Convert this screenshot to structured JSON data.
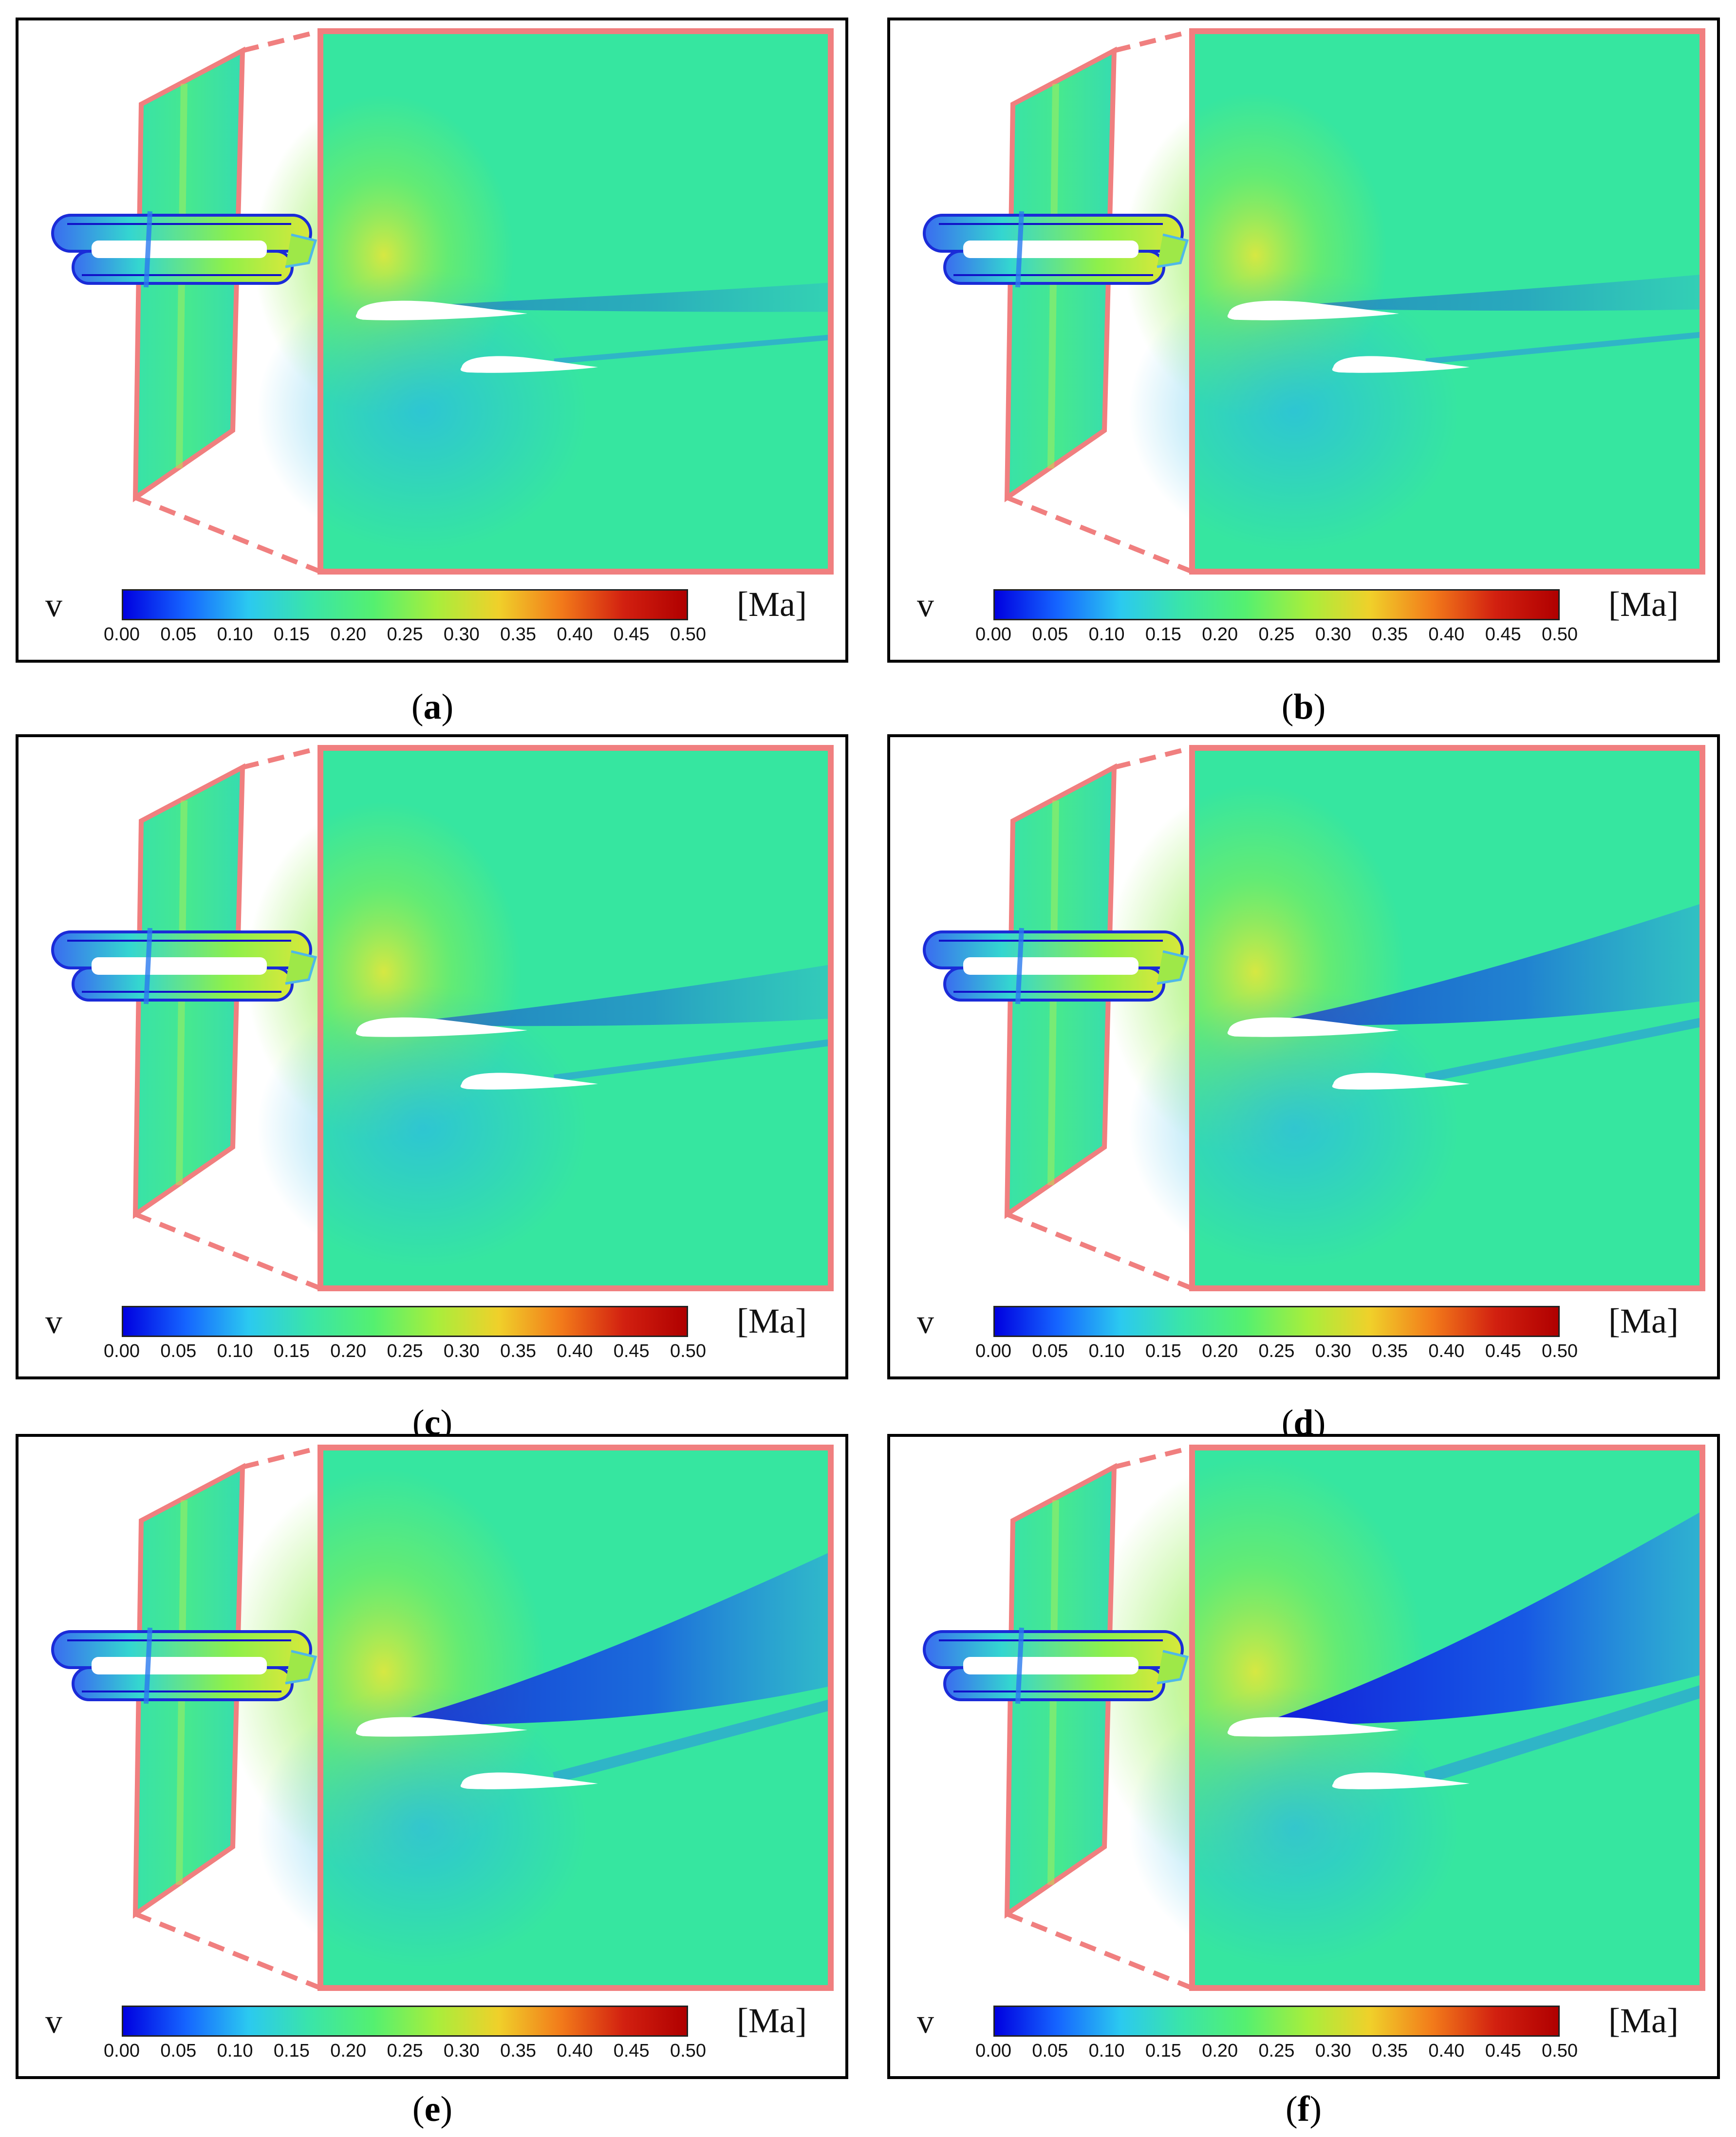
{
  "colors": {
    "frame": "#f07f7f",
    "border": "#000000",
    "field_base": "#36e6a0",
    "colormap": [
      "#0000e0",
      "#1565ff",
      "#2bc9f0",
      "#3ae5a8",
      "#54f070",
      "#a8ee3c",
      "#f0d02a",
      "#f27a1a",
      "#d22010",
      "#b00000"
    ]
  },
  "colorbar": {
    "variable": "v",
    "unit": "[Ma]",
    "ticks": [
      "0.00",
      "0.05",
      "0.10",
      "0.15",
      "0.20",
      "0.25",
      "0.30",
      "0.35",
      "0.40",
      "0.45",
      "0.50"
    ]
  },
  "panels": [
    {
      "label": "a",
      "wake": 0.08
    },
    {
      "label": "b",
      "wake": 0.12
    },
    {
      "label": "c",
      "wake": 0.25
    },
    {
      "label": "d",
      "wake": 0.55
    },
    {
      "label": "e",
      "wake": 0.8
    },
    {
      "label": "f",
      "wake": 1.0
    }
  ]
}
